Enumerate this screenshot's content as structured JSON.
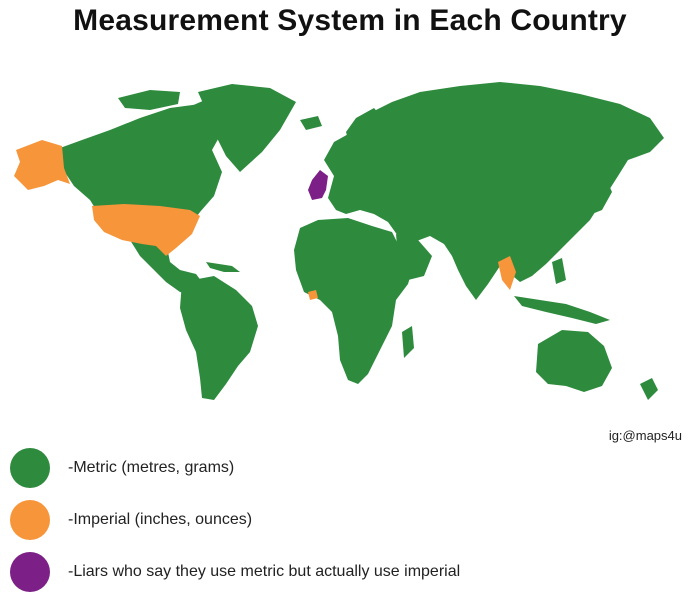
{
  "title": "Measurement System in Each Country",
  "credit": "ig:@maps4u",
  "colors": {
    "metric": "#2e8b3e",
    "imperial": "#f7953a",
    "liars": "#7c1f86",
    "background": "#ffffff"
  },
  "legend": [
    {
      "label": "-Metric (metres, grams)",
      "color": "#2e8b3e"
    },
    {
      "label": "-Imperial (inches, ounces)",
      "color": "#f7953a"
    },
    {
      "label": "-Liars who say they use metric but actually use imperial",
      "color": "#7c1f86"
    }
  ]
}
